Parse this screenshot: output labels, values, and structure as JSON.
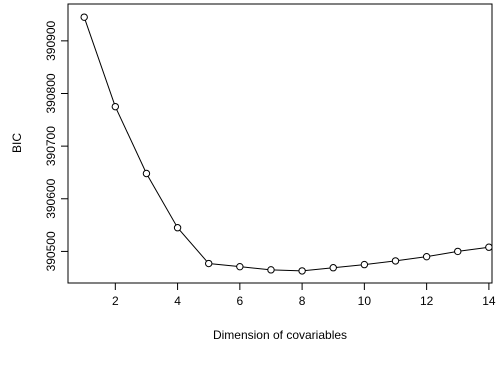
{
  "chart_data": {
    "type": "line",
    "title": "",
    "xlabel": "Dimension of covariables",
    "ylabel": "BIC",
    "x": [
      1,
      2,
      3,
      4,
      5,
      6,
      7,
      8,
      9,
      10,
      11,
      12,
      13,
      14
    ],
    "series": [
      {
        "values": [
          390945,
          390775,
          390648,
          390545,
          390477,
          390471,
          390465,
          390463,
          390469,
          390475,
          390482,
          390490,
          390500,
          390508
        ]
      }
    ],
    "xlim": [
      0.48,
      14.1
    ],
    "ylim": [
      390440,
      390970
    ],
    "xticks": [
      2,
      4,
      6,
      8,
      10,
      12,
      14
    ],
    "yticks": [
      390500,
      390600,
      390700,
      390800,
      390900
    ],
    "grid": false,
    "markers": "open-circle",
    "legend": "none"
  }
}
